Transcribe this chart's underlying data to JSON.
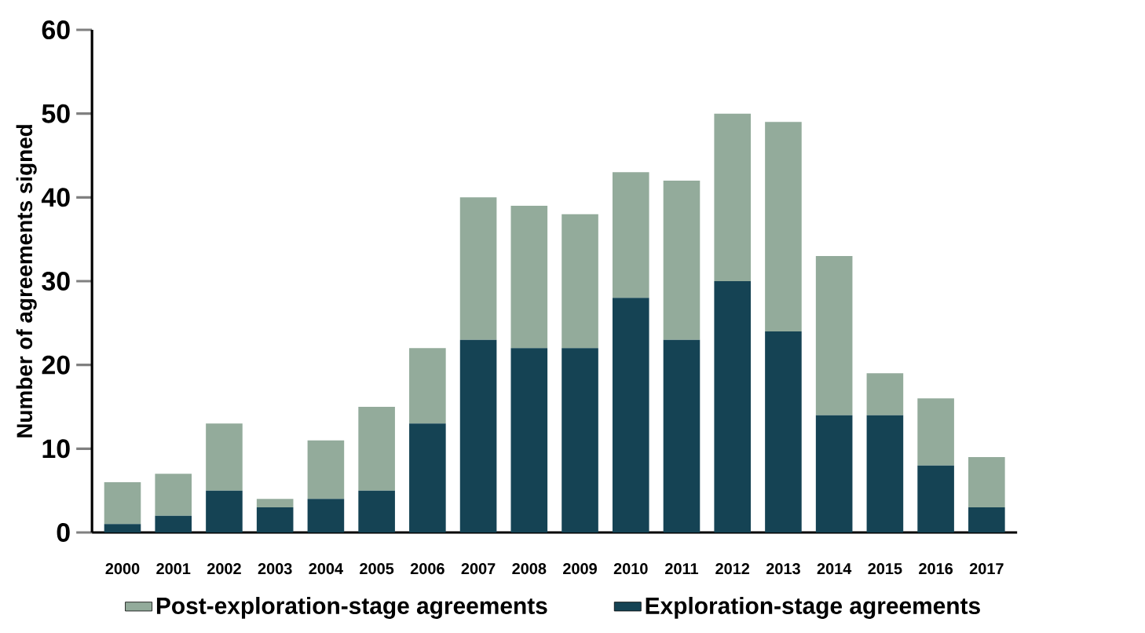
{
  "chart_data": {
    "type": "bar",
    "stacked": true,
    "ylabel": "Number of agreements signed",
    "categories": [
      "2000",
      "2001",
      "2002",
      "2003",
      "2004",
      "2005",
      "2006",
      "2007",
      "2008",
      "2009",
      "2010",
      "2011",
      "2012",
      "2013",
      "2014",
      "2015",
      "2016",
      "2017"
    ],
    "series": [
      {
        "name": "Exploration-stage agreements",
        "color": "#154354",
        "values": [
          1,
          2,
          5,
          3,
          4,
          5,
          13,
          23,
          22,
          22,
          28,
          23,
          30,
          24,
          14,
          14,
          8,
          3
        ]
      },
      {
        "name": "Post-exploration-stage agreements",
        "color": "#93ab9b",
        "values": [
          5,
          5,
          8,
          1,
          7,
          10,
          9,
          17,
          17,
          16,
          15,
          19,
          20,
          25,
          19,
          5,
          8,
          6
        ]
      }
    ],
    "ylim": [
      0,
      60
    ],
    "yticks": [
      0,
      10,
      20,
      30,
      40,
      50,
      60
    ],
    "legend": "bottom"
  }
}
